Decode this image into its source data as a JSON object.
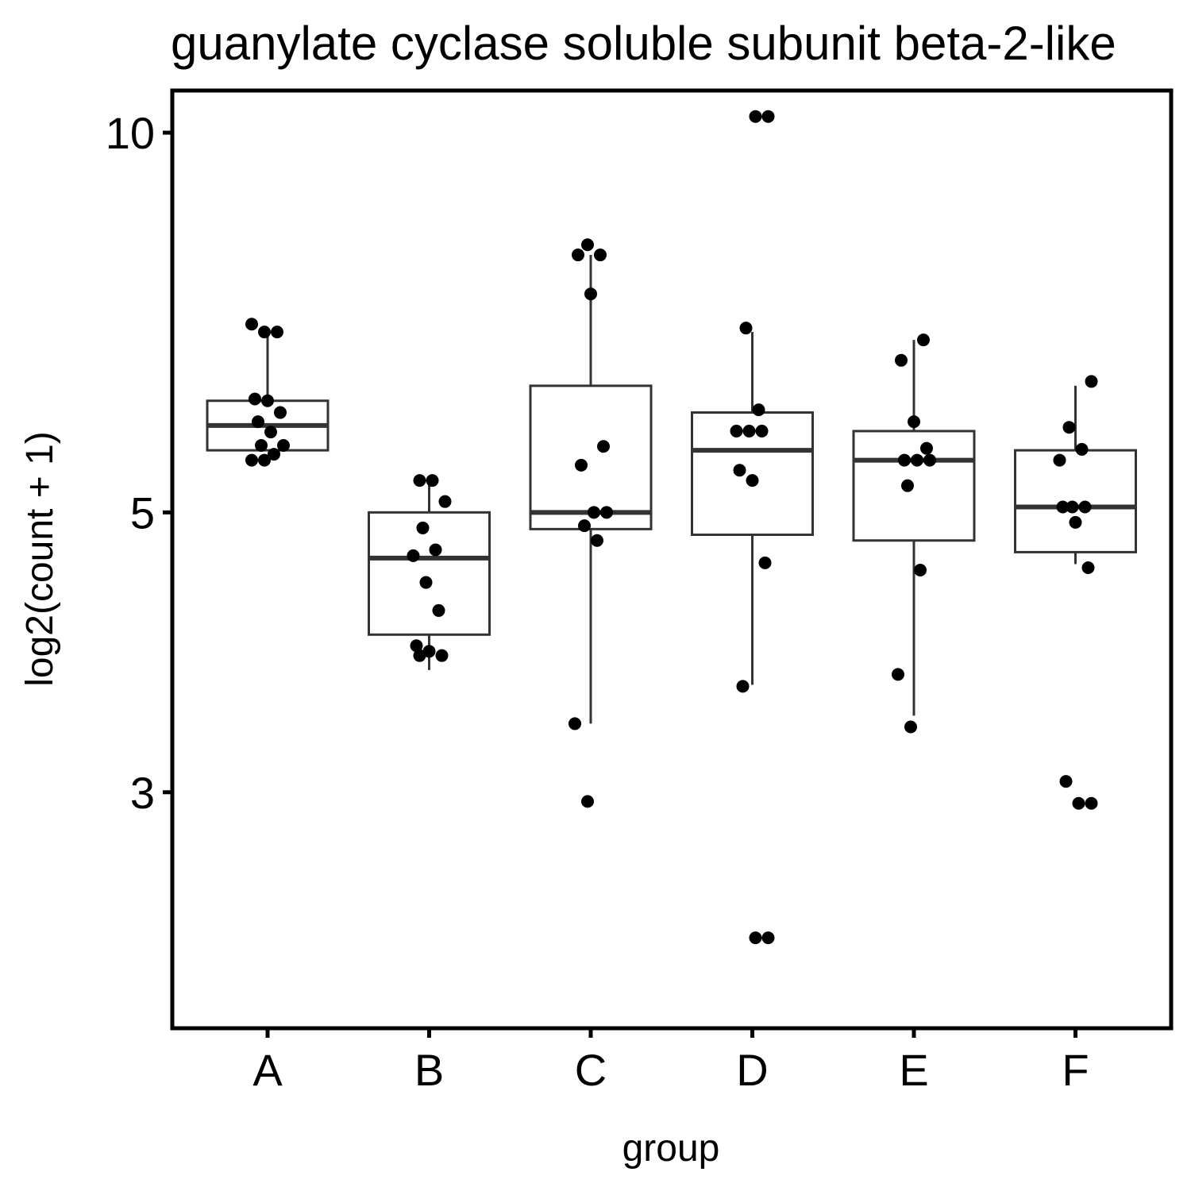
{
  "chart_data": {
    "type": "box",
    "title": "guanylate cyclase soluble subunit beta-2-like",
    "xlabel": "group",
    "ylabel": "log2(count + 1)",
    "y_scale": "log",
    "ylim": [
      1.95,
      10.8
    ],
    "yticks": [
      3,
      5,
      10
    ],
    "categories": [
      "A",
      "B",
      "C",
      "D",
      "E",
      "F"
    ],
    "boxes": [
      {
        "group": "A",
        "q1": 5.6,
        "median": 5.86,
        "q3": 6.13,
        "whisker_low": 5.6,
        "whisker_high": 7.0
      },
      {
        "group": "B",
        "q1": 4.0,
        "median": 4.6,
        "q3": 5.0,
        "whisker_low": 3.75,
        "whisker_high": 5.3
      },
      {
        "group": "C",
        "q1": 4.85,
        "median": 5.0,
        "q3": 6.3,
        "whisker_low": 3.4,
        "whisker_high": 8.0
      },
      {
        "group": "D",
        "q1": 4.8,
        "median": 5.6,
        "q3": 6.0,
        "whisker_low": 3.65,
        "whisker_high": 6.95
      },
      {
        "group": "E",
        "q1": 4.75,
        "median": 5.5,
        "q3": 5.8,
        "whisker_low": 3.45,
        "whisker_high": 6.85
      },
      {
        "group": "F",
        "q1": 4.65,
        "median": 5.05,
        "q3": 5.6,
        "whisker_low": 4.55,
        "whisker_high": 6.3
      }
    ],
    "points": [
      {
        "group": "A",
        "y": [
          7.05,
          6.95,
          6.95,
          6.15,
          6.13,
          6.0,
          5.9,
          5.79,
          5.65,
          5.65,
          5.56,
          5.5,
          5.5
        ]
      },
      {
        "group": "B",
        "y": [
          5.3,
          5.3,
          5.1,
          4.86,
          4.67,
          4.62,
          4.4,
          4.18,
          3.92,
          3.88,
          3.85,
          3.85
        ]
      },
      {
        "group": "C",
        "y": [
          8.15,
          8.0,
          8.0,
          7.45,
          5.64,
          5.45,
          5.0,
          5.0,
          4.88,
          4.75,
          3.4,
          2.95
        ]
      },
      {
        "group": "D",
        "y": [
          10.3,
          10.3,
          7.0,
          6.03,
          5.8,
          5.8,
          5.8,
          5.4,
          5.3,
          4.56,
          3.64,
          2.3,
          2.3
        ]
      },
      {
        "group": "E",
        "y": [
          6.85,
          6.6,
          5.9,
          5.62,
          5.5,
          5.5,
          5.5,
          5.25,
          4.5,
          3.72,
          3.38
        ]
      },
      {
        "group": "F",
        "y": [
          6.35,
          5.84,
          5.61,
          5.5,
          5.05,
          5.05,
          5.05,
          4.91,
          4.52,
          3.06,
          2.94,
          2.94
        ]
      }
    ]
  }
}
